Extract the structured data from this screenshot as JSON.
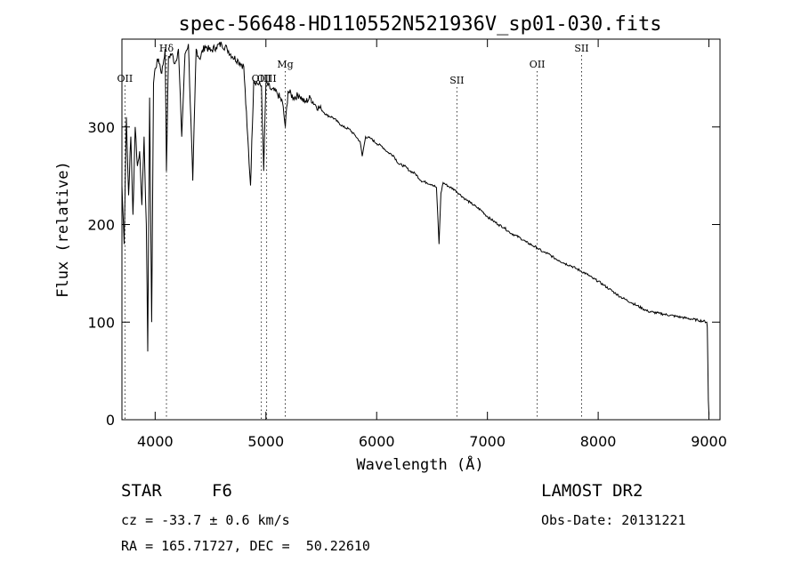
{
  "colors": {
    "background": "#ffffff",
    "foreground": "#000000"
  },
  "footer": {
    "obj_class": "STAR",
    "subclass": "F6",
    "survey": "LAMOST DR2",
    "cz": "cz = -33.7 ± 0.6 km/s",
    "obs_date": "Obs-Date: 20131221",
    "radec": "RA = 165.71727, DEC =  50.22610"
  },
  "chart_data": {
    "type": "line",
    "title": "spec-56648-HD110552N521936V_sp01-030.fits",
    "xlabel": "Wavelength (Å)",
    "ylabel": "Flux (relative)",
    "xlim": [
      3700,
      9100
    ],
    "ylim": [
      0,
      390
    ],
    "x_ticks": [
      4000,
      5000,
      6000,
      7000,
      8000,
      9000
    ],
    "y_ticks": [
      0,
      100,
      200,
      300
    ],
    "grid": false,
    "line_markers": [
      {
        "label": "OII",
        "x": 3727
      },
      {
        "label": "Hδ",
        "x": 4102
      },
      {
        "label": "OIII",
        "x": 4959
      },
      {
        "label": "OIII",
        "x": 5007
      },
      {
        "label": "Mg",
        "x": 5175
      },
      {
        "label": "SII",
        "x": 6724
      },
      {
        "label": "OII",
        "x": 7450
      },
      {
        "label": "SII",
        "x": 7850
      }
    ],
    "series": [
      {
        "x": [
          3700,
          3720,
          3740,
          3760,
          3780,
          3800,
          3820,
          3840,
          3860,
          3880,
          3900,
          3920,
          3933,
          3950,
          3968,
          3985,
          4000,
          4030,
          4060,
          4090,
          4102,
          4120,
          4150,
          4180,
          4210,
          4240,
          4270,
          4300,
          4340,
          4370,
          4400,
          4450,
          4500,
          4550,
          4600,
          4650,
          4700,
          4750,
          4800,
          4830,
          4861,
          4890,
          4920,
          4960,
          4980,
          5000,
          5050,
          5100,
          5150,
          5175,
          5200,
          5250,
          5300,
          5350,
          5400,
          5450,
          5500,
          5550,
          5600,
          5650,
          5700,
          5750,
          5800,
          5850,
          5870,
          5900,
          5950,
          6000,
          6050,
          6100,
          6150,
          6200,
          6250,
          6300,
          6350,
          6400,
          6450,
          6500,
          6540,
          6563,
          6580,
          6600,
          6650,
          6700,
          6750,
          6800,
          6850,
          6900,
          6950,
          7000,
          7050,
          7100,
          7150,
          7200,
          7250,
          7300,
          7350,
          7400,
          7450,
          7500,
          7550,
          7600,
          7650,
          7700,
          7750,
          7800,
          7850,
          7900,
          7950,
          8000,
          8050,
          8100,
          8150,
          8200,
          8250,
          8300,
          8350,
          8400,
          8450,
          8500,
          8550,
          8600,
          8650,
          8700,
          8750,
          8800,
          8850,
          8900,
          8950,
          8980,
          8985,
          8990,
          8995,
          9000
        ],
        "values": [
          240,
          180,
          310,
          230,
          290,
          210,
          300,
          260,
          275,
          220,
          290,
          200,
          70,
          330,
          100,
          345,
          360,
          370,
          355,
          380,
          255,
          372,
          375,
          365,
          380,
          290,
          375,
          385,
          245,
          380,
          370,
          383,
          378,
          382,
          385,
          380,
          372,
          368,
          362,
          300,
          240,
          348,
          345,
          342,
          255,
          345,
          338,
          335,
          325,
          300,
          337,
          330,
          333,
          325,
          330,
          322,
          318,
          312,
          310,
          305,
          300,
          298,
          292,
          285,
          270,
          290,
          288,
          283,
          280,
          274,
          271,
          262,
          260,
          255,
          252,
          245,
          243,
          241,
          238,
          180,
          232,
          243,
          239,
          236,
          231,
          226,
          222,
          218,
          214,
          208,
          204,
          200,
          197,
          192,
          189,
          186,
          182,
          179,
          176,
          172,
          170,
          166,
          163,
          160,
          158,
          155,
          152,
          149,
          145,
          142,
          138,
          134,
          130,
          126,
          123,
          120,
          117,
          114,
          111,
          110,
          109,
          108,
          107,
          106,
          105,
          104,
          103,
          102,
          101,
          100,
          95,
          60,
          20,
          5
        ]
      }
    ]
  }
}
